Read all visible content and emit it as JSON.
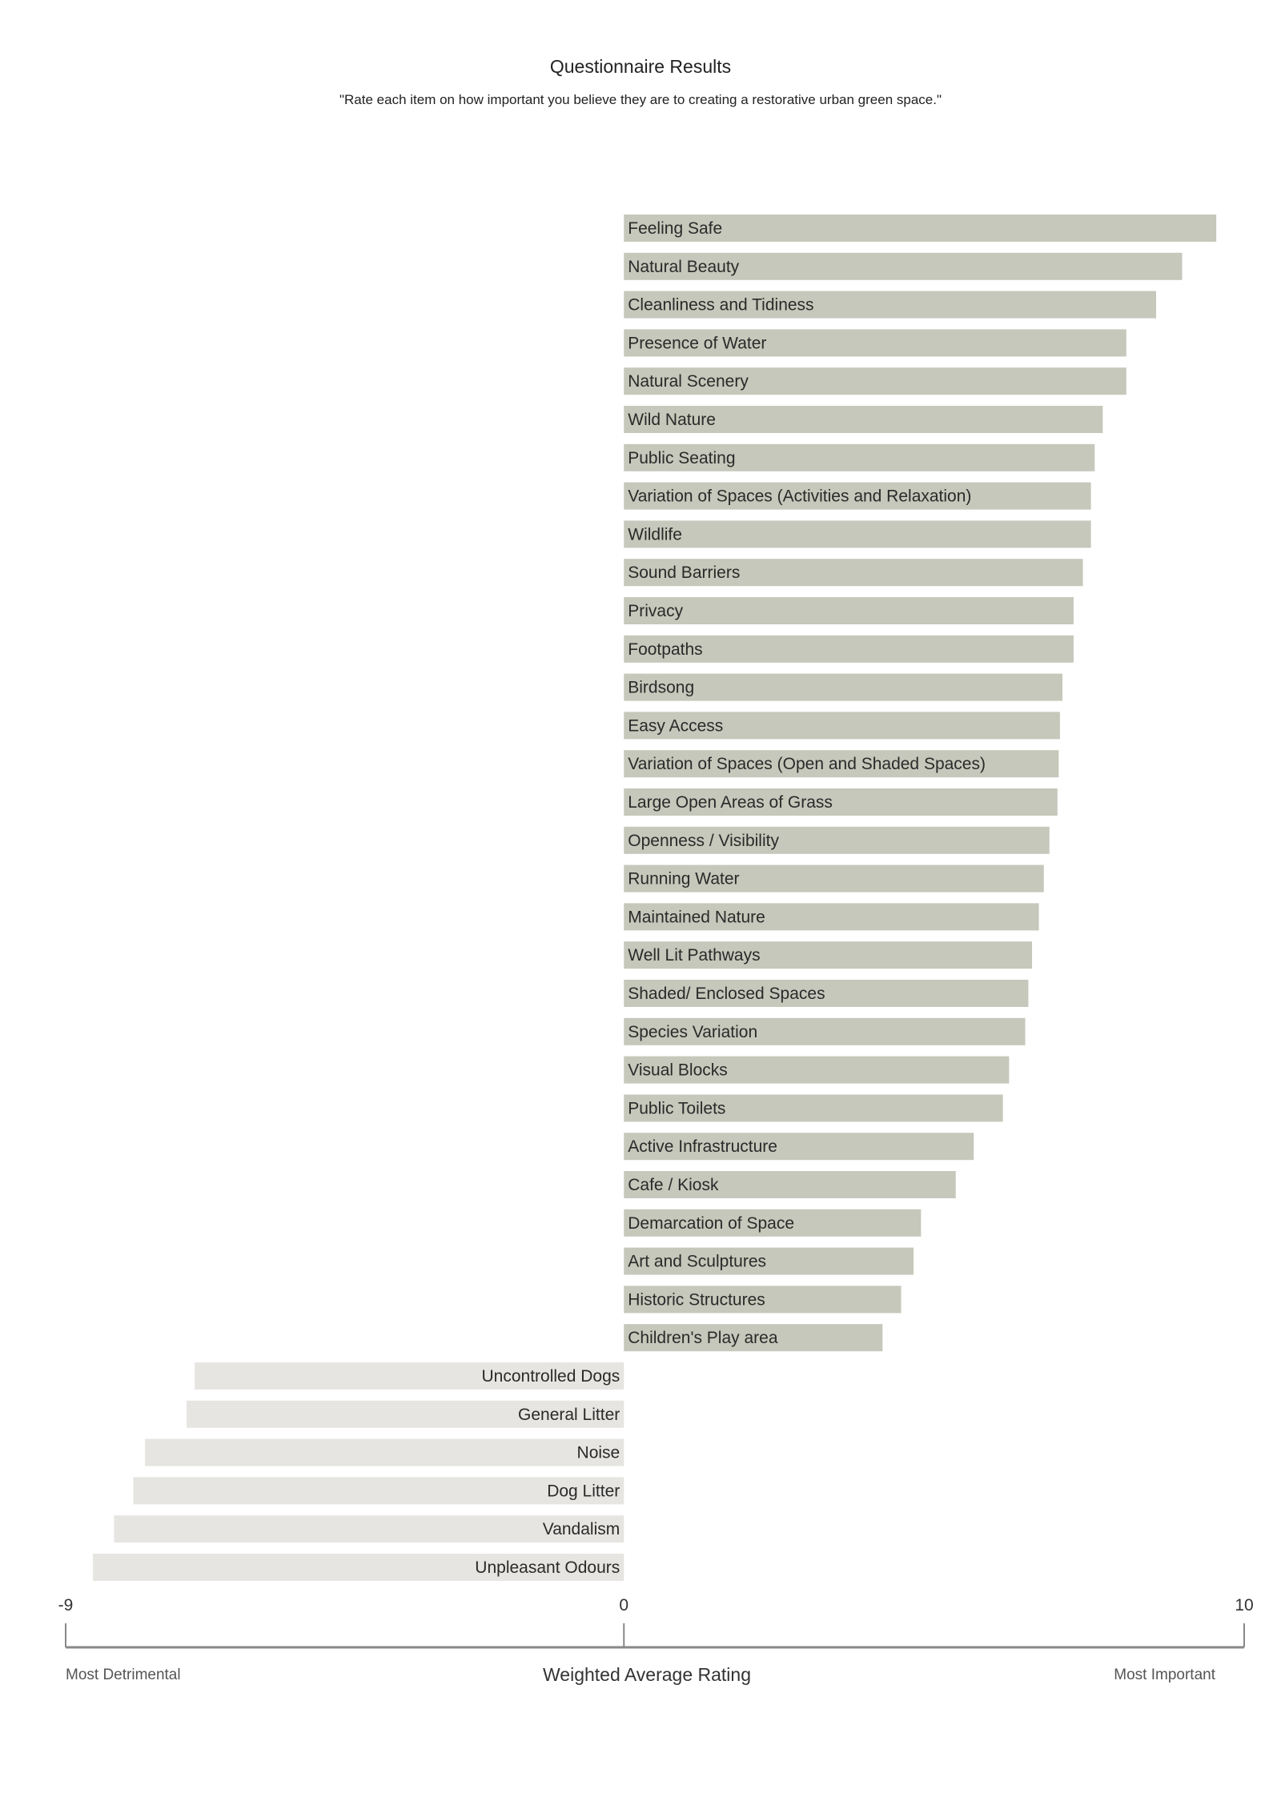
{
  "chart_data": {
    "type": "bar",
    "orientation": "horizontal",
    "title": "Questionnaire Results",
    "subtitle": "\"Rate each item on how important you believe they are to creating a restorative urban green space.\"",
    "xlabel": "Weighted Average Rating",
    "xlim": [
      -9,
      10
    ],
    "ticks": [
      "-9",
      "0",
      "10"
    ],
    "tick_values": [
      -9,
      0,
      10
    ],
    "left_annotation": "Most Detrimental",
    "right_annotation": "Most Important",
    "colors": {
      "positive": "#c5c8ba",
      "negative": "#e6e5e2",
      "axis": "#888888"
    },
    "categories": [
      "Feeling Safe",
      "Natural Beauty",
      "Cleanliness and Tidiness",
      "Presence of Water",
      "Natural Scenery",
      "Wild Nature",
      "Public Seating",
      "Variation of Spaces (Activities and Relaxation)",
      "Wildlife",
      "Sound Barriers",
      "Privacy",
      "Footpaths",
      "Birdsong",
      "Easy Access",
      "Variation of Spaces (Open and Shaded Spaces)",
      "Large Open Areas of Grass",
      "Openness / Visibility",
      "Running Water",
      "Maintained Nature",
      "Well Lit Pathways",
      "Shaded/ Enclosed Spaces",
      "Species Variation",
      "Visual Blocks",
      "Public Toilets",
      "Active Infrastructure",
      "Cafe / Kiosk",
      "Demarcation of Space",
      "Art and Sculptures",
      "Historic Structures",
      "Children's Play area",
      "Uncontrolled Dogs",
      "General Litter",
      "Noise",
      "Dog Litter",
      "Vandalism",
      "Unpleasant Odours"
    ],
    "values": [
      9.55,
      9.0,
      8.58,
      8.1,
      8.1,
      7.72,
      7.59,
      7.53,
      7.53,
      7.4,
      7.25,
      7.25,
      7.07,
      7.03,
      7.01,
      6.99,
      6.86,
      6.77,
      6.69,
      6.58,
      6.52,
      6.47,
      6.21,
      6.11,
      5.64,
      5.35,
      4.79,
      4.67,
      4.47,
      4.17,
      -6.92,
      -7.05,
      -7.72,
      -7.91,
      -8.22,
      -8.56
    ]
  }
}
